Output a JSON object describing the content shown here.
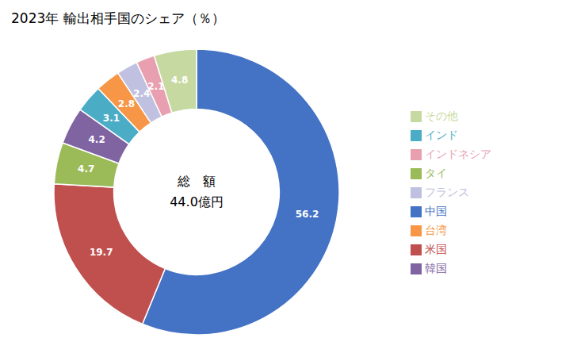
{
  "chart_data": {
    "type": "pie",
    "title": "2023年 輸出相手国のシェア（％）",
    "annotations": [
      "総　額",
      "44.0億円"
    ],
    "categories": [
      "中国",
      "米国",
      "タイ",
      "韓国",
      "インド",
      "台湾",
      "フランス",
      "インドネシア",
      "その他"
    ],
    "values": [
      56.2,
      19.7,
      4.7,
      4.2,
      3.1,
      2.8,
      2.4,
      2.1,
      4.8
    ],
    "colors": [
      "#4472C4",
      "#C0504D",
      "#9BBB59",
      "#8064A2",
      "#4BACC6",
      "#F79646",
      "#C0C0E0",
      "#E8A0B0",
      "#C6D9A0"
    ],
    "data_labels": true,
    "legend": "right"
  }
}
